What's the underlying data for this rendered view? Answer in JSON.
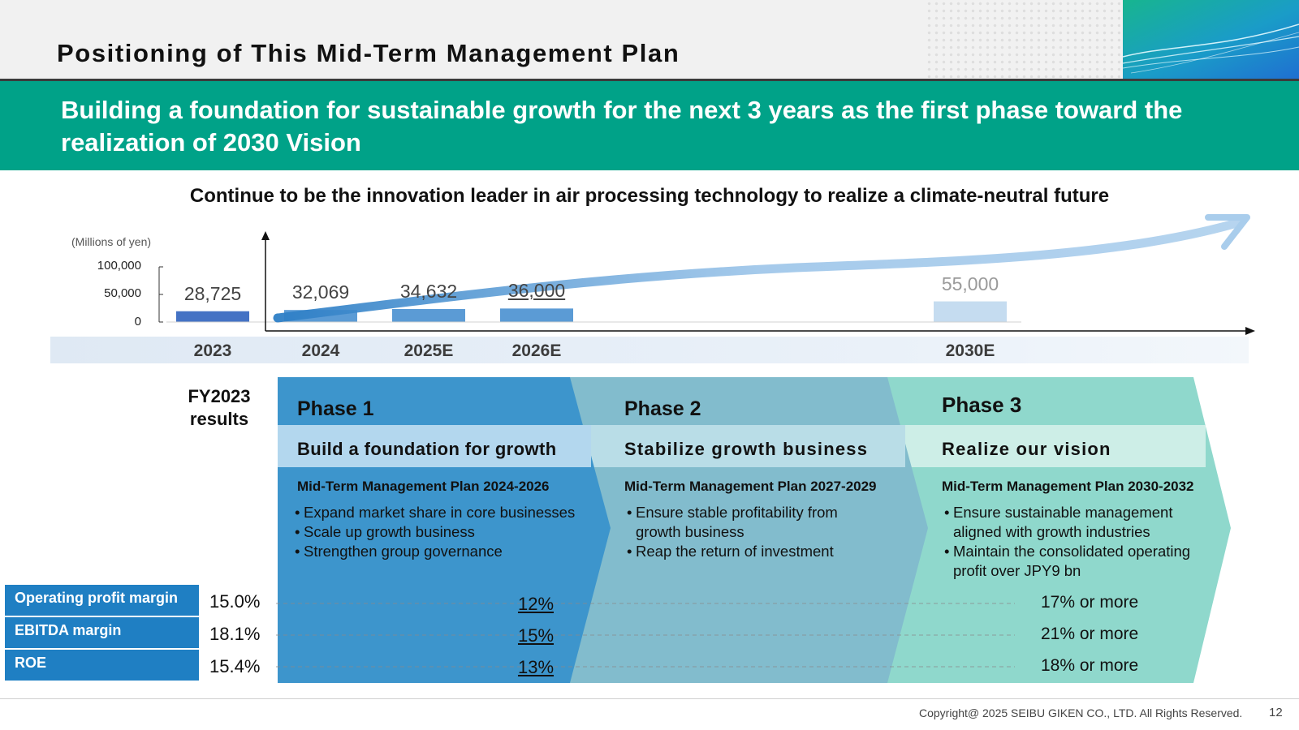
{
  "header": {
    "title": "Positioning of This Mid-Term Management Plan"
  },
  "banner": {
    "text": "Building a foundation for sustainable growth for the next 3 years as the first phase toward the realization of 2030 Vision"
  },
  "subtitle": "Continue to be the innovation leader in air processing technology to realize a climate-neutral future",
  "chart_data": {
    "type": "bar",
    "title": "",
    "unit_label": "(Millions of yen)",
    "yticks": [
      "100,000",
      "50,000",
      "0"
    ],
    "ylim": [
      0,
      100000
    ],
    "categories": [
      "2023",
      "2024",
      "2025E",
      "2026E",
      "2030E"
    ],
    "values": [
      28725,
      32069,
      34632,
      36000,
      55000
    ],
    "value_labels": [
      "28,725",
      "32,069",
      "34,632",
      "36,000",
      "55,000"
    ],
    "colors": [
      "#4472c4",
      "#5b9bd5",
      "#5b9bd5",
      "#5b9bd5",
      "#c5dcf0"
    ]
  },
  "fy2023": {
    "label_line1": "FY2023",
    "label_line2": "results"
  },
  "phases": [
    {
      "title": "Phase 1",
      "subtitle": "Build a foundation for growth",
      "plan": "Mid-Term Management Plan 2024-2026",
      "bullets": [
        "Expand market share in core businesses",
        "Scale up growth business",
        "Strengthen group governance"
      ]
    },
    {
      "title": "Phase 2",
      "subtitle": "Stabilize growth business",
      "plan": "Mid-Term Management Plan 2027-2029",
      "bullets": [
        "Ensure stable profitability from growth business",
        "Reap the return of investment"
      ]
    },
    {
      "title": "Phase 3",
      "subtitle": "Realize our vision",
      "plan": "Mid-Term Management Plan 2030-2032",
      "bullets": [
        "Ensure sustainable management aligned with growth industries",
        "Maintain the consolidated operating profit over JPY9 bn"
      ]
    }
  ],
  "kpis": [
    {
      "label": "Operating profit margin",
      "fy2023": "15.0%",
      "phase1": "12%",
      "phase3": "17% or more"
    },
    {
      "label": "EBITDA margin",
      "fy2023": "18.1%",
      "phase1": "15%",
      "phase3": "21% or more"
    },
    {
      "label": "ROE",
      "fy2023": "15.4%",
      "phase1": "13%",
      "phase3": "18% or more"
    }
  ],
  "footer": {
    "copyright": "Copyright@ 2025 SEIBU GIKEN CO., LTD. All Rights  Reserved.",
    "page": "12"
  },
  "colors": {
    "banner": "#00a288",
    "phase1": "#3d95cc",
    "phase2": "#82bccd",
    "phase3": "#8fd8cc",
    "kpi_label": "#1f7fc3"
  }
}
